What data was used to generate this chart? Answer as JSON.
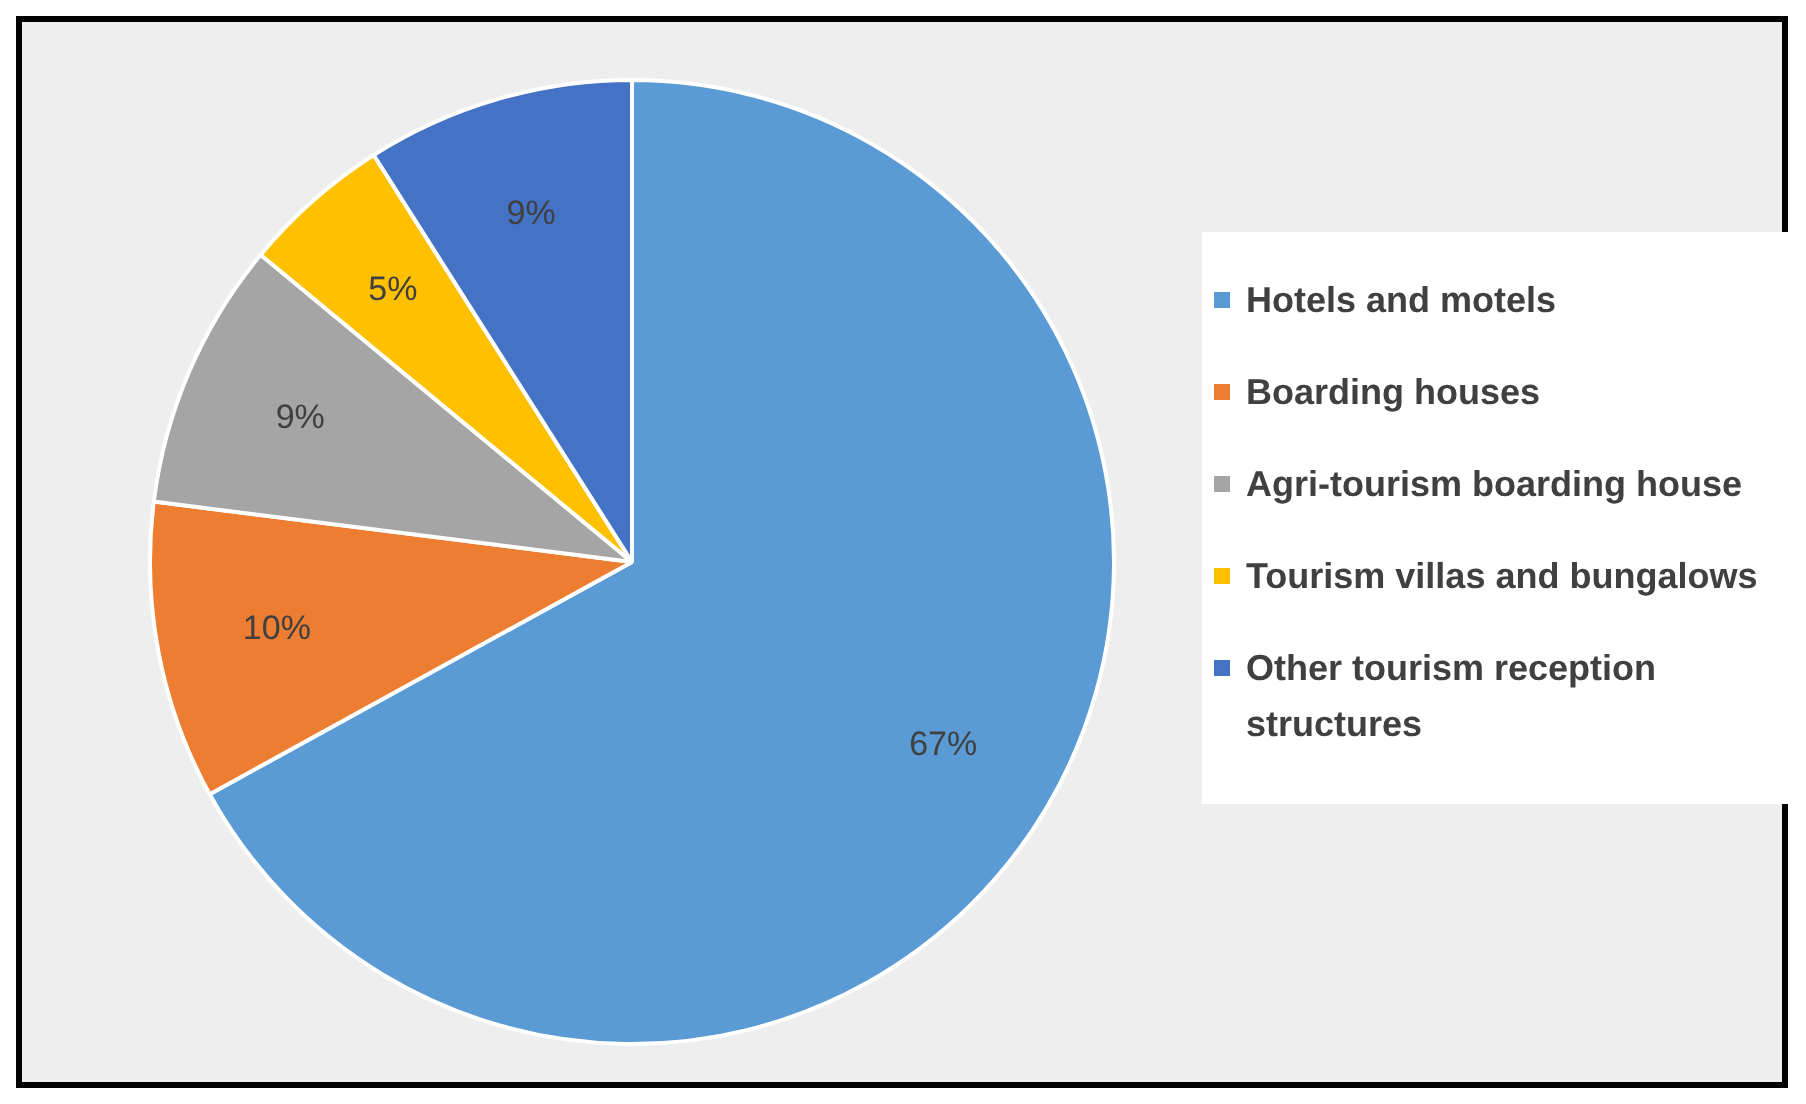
{
  "chart_data": {
    "type": "pie",
    "categories": [
      "Hotels and motels",
      "Boarding houses",
      "Agri-tourism boarding house",
      "Tourism villas and bungalows",
      "Other tourism reception structures"
    ],
    "values": [
      67,
      10,
      9,
      5,
      9
    ],
    "colors": [
      "#5b9bd5",
      "#ed7d31",
      "#a5a5a5",
      "#ffc000",
      "#4472c4"
    ],
    "value_labels": [
      "67%",
      "10%",
      "9%",
      "5%",
      "9%"
    ],
    "legend": "right"
  }
}
